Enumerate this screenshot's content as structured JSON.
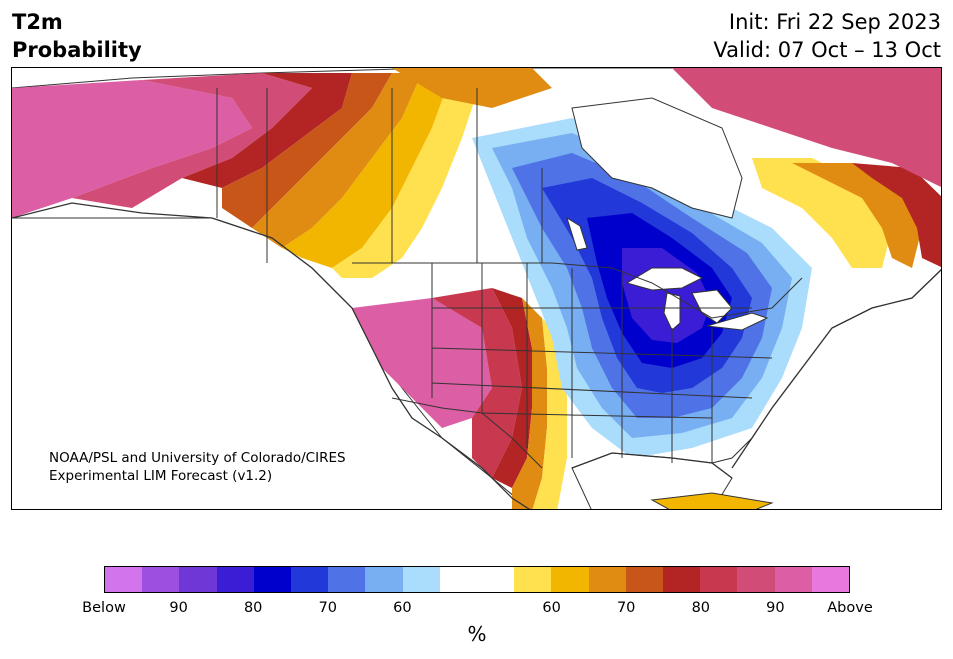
{
  "title": {
    "line1": "T2m",
    "line2": "Probability"
  },
  "dates": {
    "init": "Init: Fri 22 Sep 2023",
    "valid": "Valid: 07 Oct – 13 Oct"
  },
  "credit": {
    "line1": "NOAA/PSL and University of Colorado/CIRES",
    "line2": "Experimental LIM Forecast (v1.2)"
  },
  "colorbar": {
    "unit": "%",
    "colors": [
      "#d274ec",
      "#9d50e0",
      "#6f37d6",
      "#3a1dd4",
      "#0000cc",
      "#2238d8",
      "#4f73e6",
      "#77aff2",
      "#aadcfc",
      "#ffffff",
      "#ffffff",
      "#ffe04e",
      "#f2b600",
      "#e08c12",
      "#c85618",
      "#b32424",
      "#c8384e",
      "#d24c78",
      "#dc5ea4",
      "#e878dc"
    ],
    "ticks": [
      {
        "label": "Below",
        "frac": 0.0
      },
      {
        "label": "90",
        "frac": 0.1
      },
      {
        "label": "80",
        "frac": 0.2
      },
      {
        "label": "70",
        "frac": 0.3
      },
      {
        "label": "60",
        "frac": 0.4
      },
      {
        "label": "60",
        "frac": 0.6
      },
      {
        "label": "70",
        "frac": 0.7
      },
      {
        "label": "80",
        "frac": 0.8
      },
      {
        "label": "90",
        "frac": 0.9
      },
      {
        "label": "Above",
        "frac": 1.0
      }
    ]
  },
  "map_colors": {
    "above_far": "#dc5ea4",
    "above_90": "#d24c78",
    "above_85": "#c8384e",
    "above_80": "#b32424",
    "above_75": "#c85618",
    "above_70": "#e08c12",
    "above_65": "#f2b600",
    "above_60": "#ffe04e",
    "neutral": "#ffffff",
    "below_60": "#aadcfc",
    "below_65": "#77aff2",
    "below_70": "#4f73e6",
    "below_75": "#2238d8",
    "below_80": "#0000cc",
    "below_85": "#3a1dd4",
    "ocean": "#ffffff",
    "border": "#333333"
  }
}
